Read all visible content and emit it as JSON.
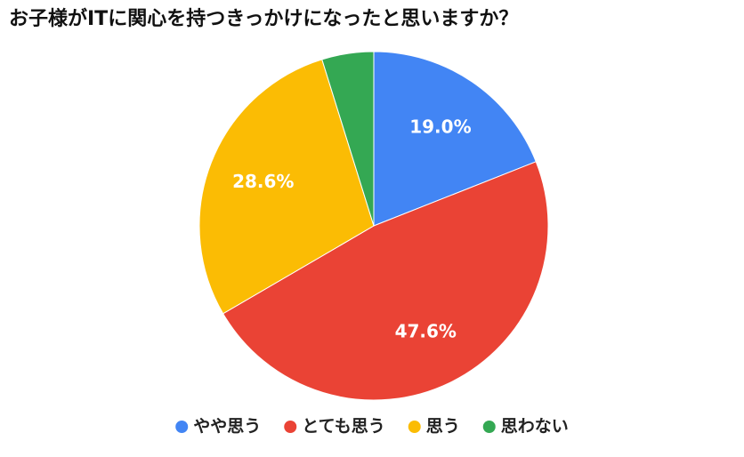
{
  "chart_data": {
    "type": "pie",
    "title": "お子様がITに関心を持つきっかけになったと思いますか？",
    "categories": [
      "やや思う",
      "とても思う",
      "思う",
      "思わない"
    ],
    "values": [
      19.0,
      47.6,
      28.6,
      4.8
    ],
    "value_labels": [
      "19.0%",
      "47.6%",
      "28.6%",
      null
    ],
    "colors": [
      "#4285f4",
      "#ea4335",
      "#fbbc04",
      "#34a853"
    ],
    "legend": "bottom"
  }
}
